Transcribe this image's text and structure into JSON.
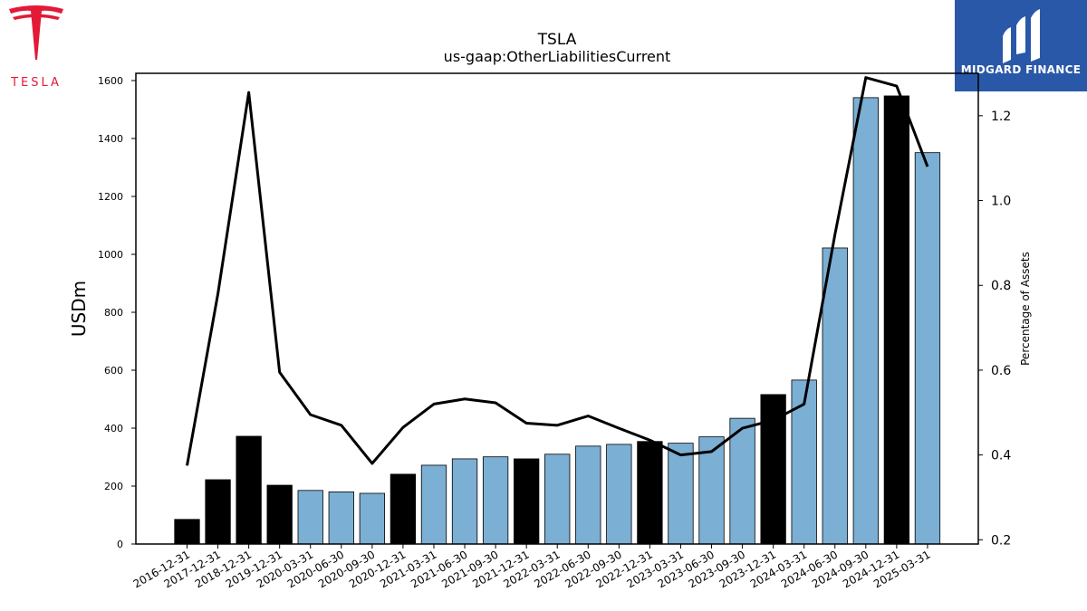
{
  "logos": {
    "left_wordmark": "TESLA",
    "right_brand": "MIDGARD FINANCE",
    "tesla_red": "#e31937",
    "midgard_blue": "#2a58a8"
  },
  "chart_data": {
    "type": "bar",
    "title": "TSLA",
    "subtitle": "us-gaap:OtherLiabilitiesCurrent",
    "ylabel": "USDm",
    "y2label": "Percentage of Assets",
    "ylim": [
      0,
      1625
    ],
    "y2lim": [
      0.19,
      1.3
    ],
    "yticks": [
      0,
      200,
      400,
      600,
      800,
      1000,
      1200,
      1400,
      1600
    ],
    "y2ticks": [
      0.2,
      0.4,
      0.6,
      0.8,
      1.0,
      1.2
    ],
    "y2tick_labels": [
      "0.2",
      "0.4",
      "0.6",
      "0.8",
      "1.0",
      "1.2"
    ],
    "grid": false,
    "colors": {
      "annual": "#000000",
      "quarterly": "#7bafd4",
      "line": "#000000"
    },
    "categories": [
      "2016-12-31",
      "2017-12-31",
      "2018-12-31",
      "2019-12-31",
      "2020-03-31",
      "2020-06-30",
      "2020-09-30",
      "2020-12-31",
      "2021-03-31",
      "2021-06-30",
      "2021-09-30",
      "2021-12-31",
      "2022-03-31",
      "2022-06-30",
      "2022-09-30",
      "2022-12-31",
      "2023-03-31",
      "2023-06-30",
      "2023-09-30",
      "2023-12-31",
      "2024-03-31",
      "2024-06-30",
      "2024-09-30",
      "2024-12-31",
      "2025-03-31"
    ],
    "series": [
      {
        "values": [
          85,
          222,
          372,
          203,
          185,
          180,
          175,
          241,
          272,
          294,
          301,
          294,
          310,
          338,
          344,
          354,
          348,
          370,
          434,
          516,
          566,
          1022,
          1541,
          1547,
          1351
        ],
        "period": [
          "annual",
          "annual",
          "annual",
          "annual",
          "quarterly",
          "quarterly",
          "quarterly",
          "annual",
          "quarterly",
          "quarterly",
          "quarterly",
          "annual",
          "quarterly",
          "quarterly",
          "quarterly",
          "annual",
          "quarterly",
          "quarterly",
          "quarterly",
          "annual",
          "quarterly",
          "quarterly",
          "quarterly",
          "annual",
          "quarterly"
        ]
      },
      {
        "axis": "right",
        "type": "line",
        "values": [
          0.375,
          0.78,
          1.255,
          0.595,
          0.495,
          0.47,
          0.38,
          0.465,
          0.52,
          0.532,
          0.523,
          0.475,
          0.47,
          0.492,
          0.463,
          0.435,
          0.4,
          0.408,
          0.463,
          0.482,
          0.52,
          0.92,
          1.29,
          1.27,
          1.08
        ]
      }
    ]
  }
}
